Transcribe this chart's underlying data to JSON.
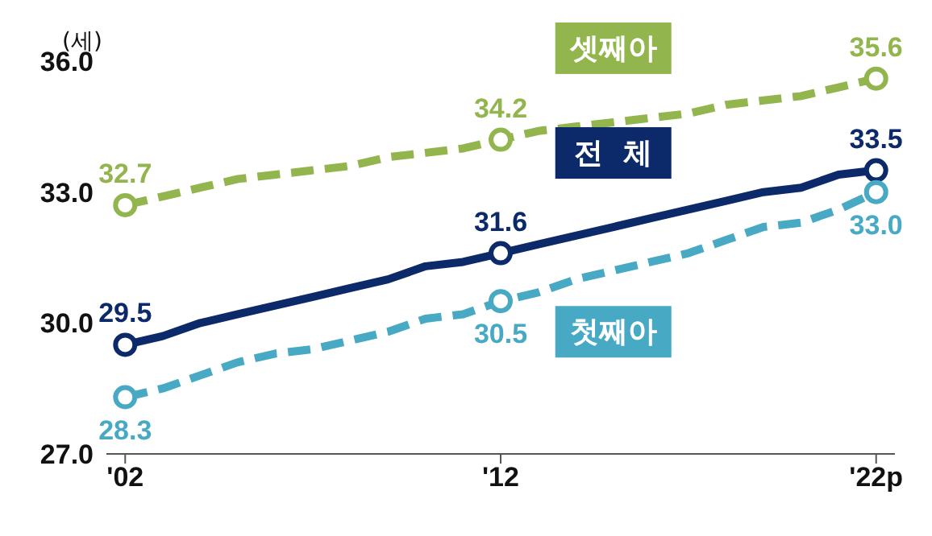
{
  "chart_data": {
    "type": "line",
    "ylabel": "(세)",
    "categories": [
      "'02",
      null,
      null,
      null,
      null,
      null,
      null,
      null,
      null,
      null,
      "'12",
      null,
      null,
      null,
      null,
      null,
      null,
      null,
      null,
      null,
      "'22p"
    ],
    "series": [
      {
        "name": "셋째아",
        "color": "#92b54e",
        "line_style": "dashed",
        "marker": "none",
        "values": [
          32.7,
          32.9,
          33.1,
          33.3,
          33.4,
          33.5,
          33.6,
          33.8,
          33.9,
          34.0,
          34.2,
          34.4,
          34.5,
          34.6,
          34.7,
          34.8,
          35.0,
          35.1,
          35.2,
          35.4,
          35.6
        ]
      },
      {
        "name": "전  체",
        "color": "#0c2a6a",
        "line_style": "solid",
        "marker": "none",
        "values": [
          29.5,
          29.7,
          30.0,
          30.2,
          30.4,
          30.6,
          30.8,
          31.0,
          31.3,
          31.4,
          31.6,
          31.8,
          32.0,
          32.2,
          32.4,
          32.6,
          32.8,
          33.0,
          33.1,
          33.4,
          33.5
        ]
      },
      {
        "name": "첫째아",
        "color": "#47a9c4",
        "line_style": "dashed",
        "marker": "none",
        "values": [
          28.3,
          28.5,
          28.8,
          29.1,
          29.3,
          29.4,
          29.6,
          29.8,
          30.1,
          30.2,
          30.5,
          30.7,
          31.0,
          31.2,
          31.4,
          31.6,
          31.9,
          32.2,
          32.3,
          32.6,
          33.0
        ]
      },
      {
        "type": "scatter",
        "color": "#92b54e",
        "marker": "circle",
        "x": [
          "'02",
          "'12",
          "'22p"
        ],
        "values": [
          32.7,
          34.2,
          35.6
        ],
        "value_labels": [
          "32.7",
          "34.2",
          "35.6"
        ]
      },
      {
        "type": "scatter",
        "color": "#0c2a6a",
        "marker": "circle",
        "x": [
          "'02",
          "'12",
          "'22p"
        ],
        "values": [
          29.5,
          31.6,
          33.5
        ],
        "value_labels": [
          "29.5",
          "31.6",
          "33.5"
        ]
      },
      {
        "type": "scatter",
        "color": "#47a9c4",
        "marker": "circle",
        "x": [
          "'02",
          "'12",
          "'22p"
        ],
        "values": [
          28.3,
          30.5,
          33.0
        ],
        "value_labels": [
          "28.3",
          "30.5",
          "33.0"
        ]
      }
    ],
    "ylim": [
      27,
      36
    ],
    "yticks": [
      {
        "value": 27,
        "label": "27.0"
      },
      {
        "value": 30,
        "label": "30.0"
      },
      {
        "value": 33,
        "label": "33.0"
      },
      {
        "value": 36,
        "label": "36.0"
      }
    ],
    "grid": false,
    "legend": false
  }
}
